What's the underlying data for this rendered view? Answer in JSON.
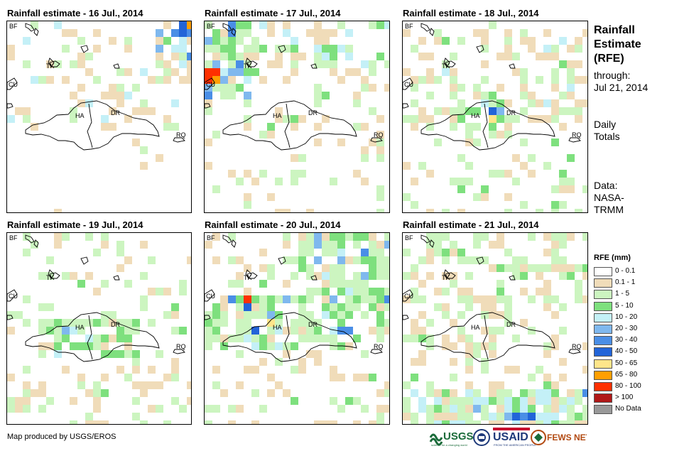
{
  "panels": [
    {
      "title": "Rainfall estimate - 16 Jul., 2014",
      "id": "p16"
    },
    {
      "title": "Rainfall estimate - 17 Jul., 2014",
      "id": "p17"
    },
    {
      "title": "Rainfall estimate - 18 Jul., 2014",
      "id": "p18"
    },
    {
      "title": "Rainfall estimate - 19 Jul., 2014",
      "id": "p19"
    },
    {
      "title": "Rainfall estimate - 20 Jul., 2014",
      "id": "p20"
    },
    {
      "title": "Rainfall estimate - 21 Jul., 2014",
      "id": "p21"
    }
  ],
  "map_labels": {
    "bf": "BF",
    "cu": "CU",
    "tk": "TK",
    "ha": "HA",
    "dr": "DR",
    "rq": "RQ"
  },
  "side": {
    "title_line1": "Rainfall",
    "title_line2": "Estimate",
    "title_line3": "(RFE)",
    "through_label": "through:",
    "through_date": "Jul 21, 2014",
    "daily_line1": "Daily",
    "daily_line2": "Totals",
    "data_line1": "Data:",
    "data_line2": "NASA-",
    "data_line3": "TRMM"
  },
  "legend": {
    "title": "RFE (mm)",
    "items": [
      {
        "label": "0 - 0.1",
        "color": "#ffffff"
      },
      {
        "label": "0.1 - 1",
        "color": "#f0dcb9"
      },
      {
        "label": "1 - 5",
        "color": "#ccf5c0"
      },
      {
        "label": "5 - 10",
        "color": "#7ee07e"
      },
      {
        "label": "10 - 20",
        "color": "#c4f0f7"
      },
      {
        "label": "20 - 30",
        "color": "#7fb8ee"
      },
      {
        "label": "30 - 40",
        "color": "#4a8ee6"
      },
      {
        "label": "40 - 50",
        "color": "#2264d8"
      },
      {
        "label": "50 - 65",
        "color": "#ffe58a"
      },
      {
        "label": "65 - 80",
        "color": "#ff9f00"
      },
      {
        "label": "80 - 100",
        "color": "#ff3000"
      },
      {
        "label": "> 100",
        "color": "#b01818"
      },
      {
        "label": "No Data",
        "color": "#999999"
      }
    ]
  },
  "footer": "Map produced by USGS/EROS",
  "logos": {
    "usgs": "USGS",
    "usgs_tagline": "science for a changing world",
    "usaid": "USAID",
    "usaid_tagline": "FROM THE AMERICAN PEOPLE",
    "fewsnet": "FEWS NET"
  }
}
